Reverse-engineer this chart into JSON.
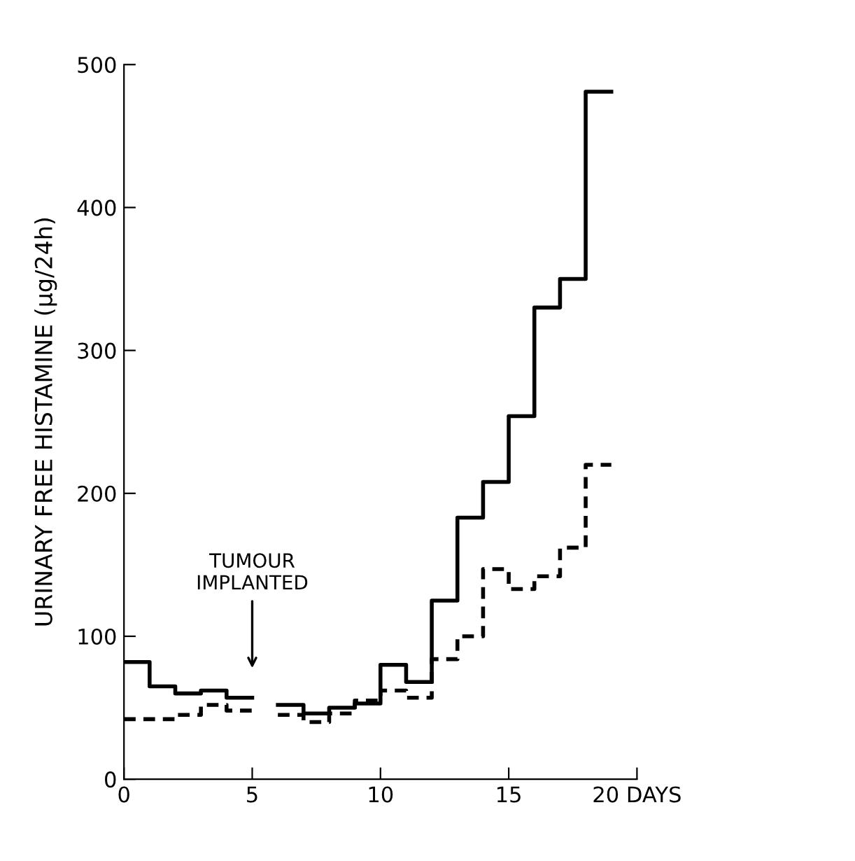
{
  "chart_data": {
    "type": "step",
    "ylabel": "URINARY FREE HISTAMINE (µg/24h)",
    "x": [
      0,
      1,
      2,
      3,
      4,
      5,
      6,
      7,
      8,
      9,
      10,
      11,
      12,
      13,
      14,
      15,
      16,
      17,
      18,
      19
    ],
    "series": [
      {
        "color": "#000000",
        "line_style": "solid",
        "values": [
          82,
          65,
          60,
          62,
          57,
          null,
          52,
          46,
          50,
          53,
          80,
          68,
          125,
          183,
          208,
          254,
          330,
          350,
          481,
          481
        ]
      },
      {
        "color": "#000000",
        "line_style": "dashed",
        "values": [
          42,
          42,
          45,
          52,
          48,
          null,
          45,
          40,
          46,
          55,
          62,
          57,
          84,
          100,
          147,
          133,
          142,
          162,
          220,
          220
        ]
      }
    ],
    "xlim": [
      0,
      20
    ],
    "ylim": [
      0,
      500
    ],
    "xticks": [
      0,
      5,
      10,
      15,
      {
        "value": 20,
        "label": "20 DAYS"
      }
    ],
    "yticks": [
      0,
      100,
      200,
      300,
      400,
      500
    ],
    "annotations": [
      "TUMOUR\nIMPLANTED"
    ],
    "grid": false,
    "legend": false,
    "marker": "none"
  }
}
